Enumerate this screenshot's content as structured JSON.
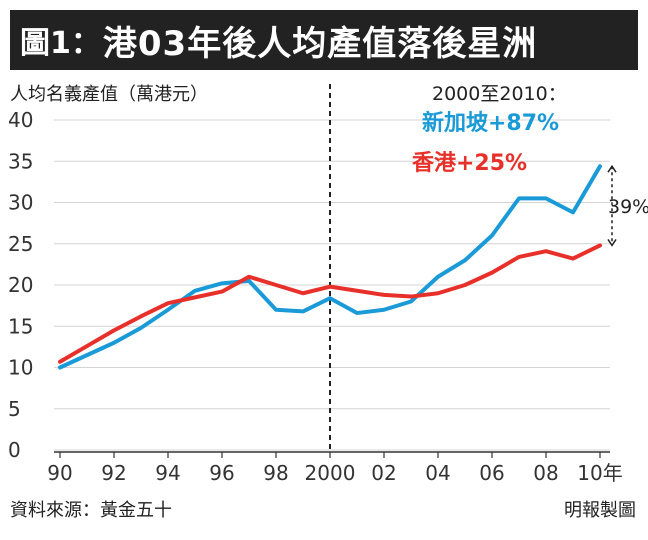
{
  "header": {
    "figure_label": "圖1：",
    "title": "港03年後人均產值落後星洲"
  },
  "footer": {
    "source": "資料來源：黃金五十",
    "credit": "明報製圖"
  },
  "colors": {
    "background": "#ffffff",
    "header_bg": "#222222",
    "singapore": "#1a9ad6",
    "hongkong": "#e8302a",
    "divider": "#222222",
    "grid": "#d4d4d4"
  },
  "chart_data": {
    "type": "line",
    "title": "",
    "ylabel": "人均名義產值（萬港元）",
    "xlabel": "",
    "x": [
      1990,
      1991,
      1992,
      1993,
      1994,
      1995,
      1996,
      1997,
      1998,
      1999,
      2000,
      2001,
      2002,
      2003,
      2004,
      2005,
      2006,
      2007,
      2008,
      2009,
      2010
    ],
    "xticks": [
      "90",
      "92",
      "94",
      "96",
      "98",
      "2000",
      "02",
      "04",
      "06",
      "08",
      "10年"
    ],
    "ylim": [
      0,
      40
    ],
    "yticks": [
      0,
      5,
      10,
      15,
      20,
      25,
      30,
      35,
      40
    ],
    "grid": true,
    "legend_header": "2000至2010：",
    "series": [
      {
        "name": "新加坡+87%",
        "color": "#1a9ad6",
        "values": [
          10.0,
          11.5,
          13.0,
          14.8,
          17.0,
          19.3,
          20.2,
          20.5,
          17.0,
          16.8,
          18.4,
          16.6,
          17.0,
          18.0,
          21.0,
          23.0,
          26.0,
          30.5,
          30.5,
          28.8,
          34.4
        ]
      },
      {
        "name": "香港+25%",
        "color": "#e8302a",
        "values": [
          10.7,
          12.6,
          14.5,
          16.2,
          17.8,
          18.5,
          19.2,
          21.0,
          20.0,
          19.0,
          19.8,
          19.3,
          18.8,
          18.6,
          19.0,
          20.0,
          21.5,
          23.4,
          24.1,
          23.2,
          24.8
        ]
      }
    ],
    "annotations": {
      "divider_x": 2000,
      "gap_label": "39%"
    }
  }
}
